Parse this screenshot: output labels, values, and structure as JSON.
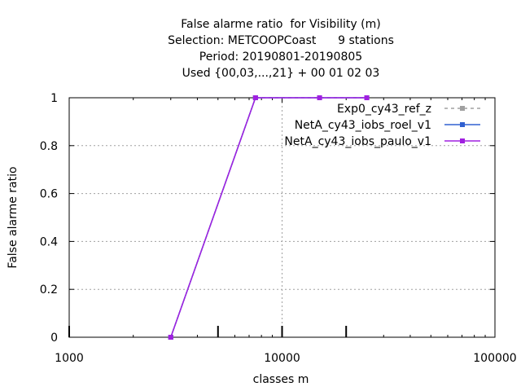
{
  "chart_data": {
    "type": "line",
    "title_lines": [
      "False alarme ratio  for Visibility (m)",
      "Selection: METCOOPCoast      9 stations",
      "Period: 20190801-20190805",
      "Used {00,03,...,21} + 00 01 02 03"
    ],
    "xlabel": "classes m",
    "ylabel": "False alarme ratio",
    "x_scale": "log",
    "xlim": [
      1000,
      100000
    ],
    "ylim": [
      0,
      1
    ],
    "x_ticks": [
      1000,
      10000,
      100000
    ],
    "x_tick_labels": [
      "1000",
      "10000",
      "100000"
    ],
    "y_ticks": [
      0,
      0.2,
      0.4,
      0.6,
      0.8,
      1
    ],
    "y_tick_labels": [
      "0",
      "0.2",
      "0.4",
      "0.6",
      "0.8",
      "1"
    ],
    "grid": true,
    "legend_position": "top-right",
    "class_marks": [
      1000,
      5000,
      10000,
      20000
    ],
    "series": [
      {
        "name": "Exp0_cy43_ref_z",
        "color": "#a0a0a0",
        "dash": "dashed",
        "marker": "point",
        "x": [
          3000,
          7500,
          15000,
          25000
        ],
        "y": [
          0,
          1,
          1,
          1
        ]
      },
      {
        "name": "NetA_cy43_iobs_roel_v1",
        "color": "#3060d0",
        "dash": "solid",
        "marker": "point",
        "x": [
          3000,
          7500,
          15000,
          25000
        ],
        "y": [
          0,
          1,
          1,
          1
        ]
      },
      {
        "name": "NetA_cy43_iobs_paulo_v1",
        "color": "#a020e0",
        "dash": "solid",
        "marker": "point",
        "x": [
          3000,
          7500,
          15000,
          25000
        ],
        "y": [
          0,
          1,
          1,
          1
        ]
      }
    ]
  }
}
